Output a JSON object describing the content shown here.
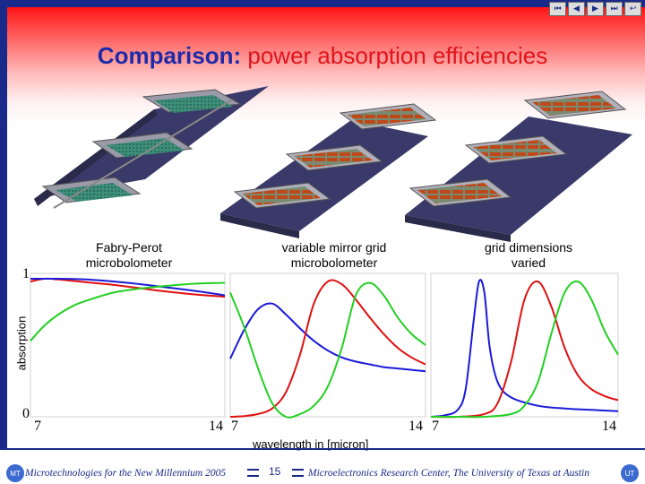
{
  "slide": {
    "title_lead": "Comparison:",
    "title_accent": "power absorption efficiencies",
    "page_number": "15",
    "footer_left": "Microtechnologies for the New Millennium 2005",
    "footer_right": "Microelectronics Research Center, The University of Texas at Austin"
  },
  "nav": [
    {
      "name": "first-slide",
      "glyph": "⏮"
    },
    {
      "name": "previous-slide",
      "glyph": "◀"
    },
    {
      "name": "next-slide",
      "glyph": "▶"
    },
    {
      "name": "last-slide",
      "glyph": "⏭"
    },
    {
      "name": "return",
      "glyph": "↩"
    }
  ],
  "panels": [
    {
      "label_line1": "Fabry-Perot",
      "label_line2": "microbolometer"
    },
    {
      "label_line1": "variable mirror grid",
      "label_line2": "microbolometer"
    },
    {
      "label_line1": "grid dimensions",
      "label_line2": "varied"
    }
  ],
  "axes": {
    "ylabel": "absorption",
    "xlabel": "wavelength in [micron]",
    "y_top": "1",
    "y_bottom": "0",
    "x_ticks": [
      "7",
      "14",
      "7",
      "14",
      "7",
      "14"
    ]
  },
  "colors": {
    "red": "#e01010",
    "green": "#22d022",
    "blue": "#1a1ad8",
    "frame": "#1a2a8a"
  },
  "chart_data": [
    {
      "type": "line",
      "xlim": [
        7,
        14
      ],
      "ylim": [
        0,
        1
      ],
      "series": [
        {
          "color": "red",
          "x": [
            7,
            7.5,
            8,
            8.5,
            9,
            9.5,
            10,
            11,
            12,
            13,
            14
          ],
          "values": [
            0.98,
            1.0,
            0.995,
            0.985,
            0.975,
            0.965,
            0.955,
            0.93,
            0.905,
            0.885,
            0.87
          ]
        },
        {
          "color": "blue",
          "x": [
            7,
            8,
            9,
            10,
            11,
            12,
            13,
            14
          ],
          "values": [
            1.0,
            1.0,
            0.995,
            0.98,
            0.96,
            0.935,
            0.91,
            0.88
          ]
        },
        {
          "color": "green",
          "x": [
            7,
            7.5,
            8,
            8.5,
            9,
            10,
            11,
            12,
            13,
            14
          ],
          "values": [
            0.55,
            0.66,
            0.74,
            0.8,
            0.84,
            0.9,
            0.93,
            0.95,
            0.965,
            0.97
          ]
        }
      ]
    },
    {
      "type": "line",
      "xlim": [
        7,
        14
      ],
      "ylim": [
        0,
        1
      ],
      "series": [
        {
          "color": "blue",
          "x": [
            7,
            7.5,
            8,
            8.5,
            9,
            9.5,
            10,
            10.5,
            11,
            11.5,
            12,
            12.5,
            13,
            13.5,
            14
          ],
          "values": [
            0.42,
            0.63,
            0.78,
            0.82,
            0.74,
            0.64,
            0.55,
            0.48,
            0.43,
            0.4,
            0.38,
            0.36,
            0.35,
            0.34,
            0.33
          ]
        },
        {
          "color": "red",
          "x": [
            7,
            7.5,
            8,
            8.5,
            9,
            9.5,
            10,
            10.5,
            11,
            11.5,
            12,
            12.5,
            13,
            13.5,
            14
          ],
          "values": [
            0.0,
            0.005,
            0.02,
            0.06,
            0.18,
            0.45,
            0.82,
            0.98,
            0.96,
            0.85,
            0.72,
            0.6,
            0.5,
            0.43,
            0.38
          ]
        },
        {
          "color": "green",
          "x": [
            7,
            7.5,
            8,
            8.5,
            9,
            9.5,
            10,
            10.5,
            11,
            11.5,
            12,
            12.5,
            13,
            13.5,
            14
          ],
          "values": [
            0.9,
            0.65,
            0.35,
            0.1,
            0.0,
            0.02,
            0.08,
            0.22,
            0.5,
            0.88,
            0.97,
            0.88,
            0.72,
            0.6,
            0.52
          ]
        }
      ]
    },
    {
      "type": "line",
      "xlim": [
        7,
        14
      ],
      "ylim": [
        0,
        1
      ],
      "series": [
        {
          "color": "blue",
          "x": [
            7,
            7.5,
            8,
            8.3,
            8.6,
            8.8,
            9,
            9.2,
            9.5,
            10,
            11,
            12,
            13,
            14
          ],
          "values": [
            0.0,
            0.01,
            0.05,
            0.2,
            0.7,
            0.98,
            0.9,
            0.5,
            0.25,
            0.14,
            0.08,
            0.06,
            0.05,
            0.04
          ]
        },
        {
          "color": "red",
          "x": [
            7,
            8,
            9,
            9.5,
            10,
            10.5,
            11,
            11.5,
            12,
            12.5,
            13,
            13.5,
            14
          ],
          "values": [
            0.0,
            0.0,
            0.02,
            0.1,
            0.4,
            0.85,
            0.98,
            0.8,
            0.5,
            0.3,
            0.2,
            0.15,
            0.12
          ]
        },
        {
          "color": "green",
          "x": [
            7,
            8,
            9,
            10,
            10.5,
            11,
            11.5,
            12,
            12.5,
            13,
            13.5,
            14
          ],
          "values": [
            0.0,
            0.0,
            0.0,
            0.02,
            0.08,
            0.25,
            0.6,
            0.9,
            0.98,
            0.85,
            0.62,
            0.45
          ]
        }
      ]
    }
  ]
}
